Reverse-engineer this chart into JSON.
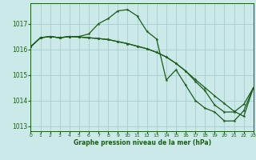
{
  "title": "Graphe pression niveau de la mer (hPa)",
  "bg_color": "#cce9e9",
  "grid_color": "#aacccc",
  "line_color": "#1a5c1a",
  "xlim": [
    0,
    23
  ],
  "ylim": [
    1012.8,
    1017.8
  ],
  "yticks": [
    1013,
    1014,
    1015,
    1016,
    1017
  ],
  "xticks": [
    0,
    1,
    2,
    3,
    4,
    5,
    6,
    7,
    8,
    9,
    10,
    11,
    12,
    13,
    14,
    15,
    16,
    17,
    18,
    19,
    20,
    21,
    22,
    23
  ],
  "series1_y": [
    1016.1,
    1016.45,
    1016.5,
    1016.45,
    1016.5,
    1016.5,
    1016.6,
    1017.0,
    1017.2,
    1017.5,
    1017.55,
    1017.3,
    1016.7,
    1016.4,
    1014.8,
    1015.2,
    1014.6,
    1014.0,
    1013.7,
    1013.55,
    1013.2,
    1013.2,
    1013.6,
    1014.5
  ],
  "series2_y": [
    1016.1,
    1016.45,
    1016.5,
    1016.45,
    1016.5,
    1016.48,
    1016.45,
    1016.42,
    1016.38,
    1016.3,
    1016.22,
    1016.12,
    1016.02,
    1015.88,
    1015.7,
    1015.45,
    1015.15,
    1014.82,
    1014.5,
    1014.18,
    1013.88,
    1013.58,
    1013.38,
    1014.5
  ],
  "series3_y": [
    1016.1,
    1016.45,
    1016.5,
    1016.45,
    1016.5,
    1016.48,
    1016.45,
    1016.42,
    1016.38,
    1016.3,
    1016.22,
    1016.12,
    1016.02,
    1015.88,
    1015.7,
    1015.45,
    1015.15,
    1014.75,
    1014.38,
    1013.82,
    1013.55,
    1013.55,
    1013.85,
    1014.5
  ]
}
